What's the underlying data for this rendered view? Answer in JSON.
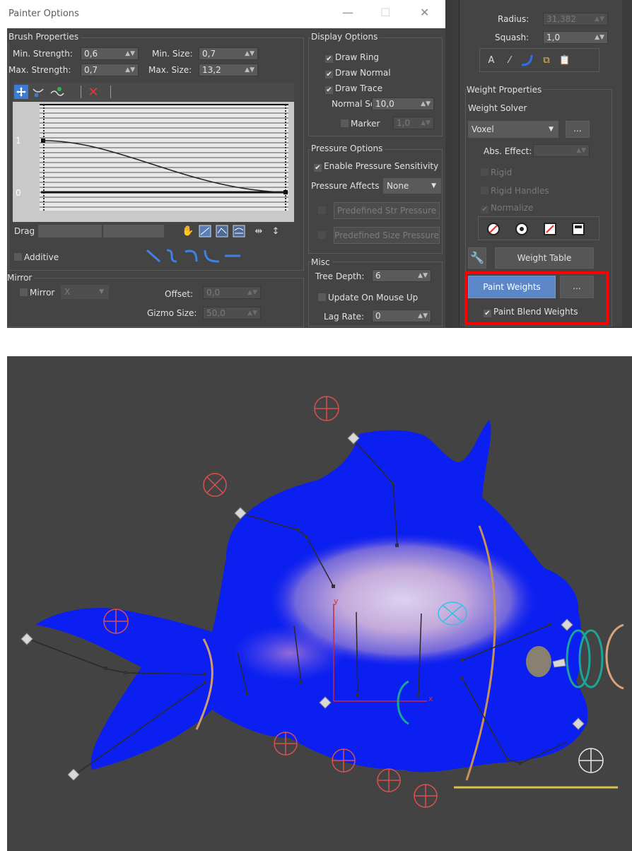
{
  "window": {
    "title": "Painter Options",
    "minimize_glyph": "—",
    "maximize_glyph": "☐",
    "close_glyph": "✕"
  },
  "brush": {
    "group_label": "Brush Properties",
    "min_strength_label": "Min. Strength:",
    "min_strength": "0,6",
    "max_strength_label": "Max. Strength:",
    "max_strength": "0,7",
    "min_size_label": "Min. Size:",
    "min_size": "0,7",
    "max_size_label": "Max. Size:",
    "max_size": "13,2",
    "curve_label_1": "1",
    "curve_label_0": "0",
    "drag_label": "Drag",
    "additive_label": "Additive"
  },
  "mirror": {
    "group_label": "Mirror",
    "mirror_label": "Mirror",
    "axis": "X",
    "offset_label": "Offset:",
    "offset": "0,0",
    "gizmo_label": "Gizmo Size:",
    "gizmo": "50,0"
  },
  "display": {
    "group_label": "Display Options",
    "draw_ring": "Draw Ring",
    "draw_normal": "Draw Normal",
    "draw_trace": "Draw Trace",
    "normal_scale_label": "Normal Scale:",
    "normal_scale": "10,0",
    "marker_label": "Marker",
    "marker": "1,0"
  },
  "pressure": {
    "group_label": "Pressure Options",
    "enable_label": "Enable Pressure Sensitivity",
    "affects_label": "Pressure Affects",
    "affects": "None",
    "str_btn": "Predefined Str Pressure",
    "size_btn": "Predefined Size Pressure"
  },
  "misc": {
    "group_label": "Misc",
    "tree_depth_label": "Tree Depth:",
    "tree_depth": "6",
    "update_label": "Update On Mouse Up",
    "lag_label": "Lag Rate:",
    "lag": "0"
  },
  "skin": {
    "radius_label": "Radius:",
    "radius": "31,382",
    "squash_label": "Squash:",
    "squash": "1,0",
    "weight_group_label": "Weight Properties",
    "solver_label": "Weight Solver",
    "solver": "Voxel",
    "ellipsis": "...",
    "abs_effect_label": "Abs. Effect:",
    "rigid": "Rigid",
    "rigid_handles": "Rigid Handles",
    "normalize": "Normalize",
    "weight_table": "Weight Table",
    "paint_weights": "Paint Weights",
    "paint_blend": "Paint Blend Weights"
  },
  "viewport": {
    "axis_y": "y",
    "axis_x": "x",
    "mesh_color": "#0a1ff0",
    "bone_color": "#2a2a2a",
    "ring_color": "#d95050"
  },
  "colors": {
    "highlight": "#ff0000",
    "paint_button": "#5b86c8",
    "panel_bg": "#444444"
  }
}
